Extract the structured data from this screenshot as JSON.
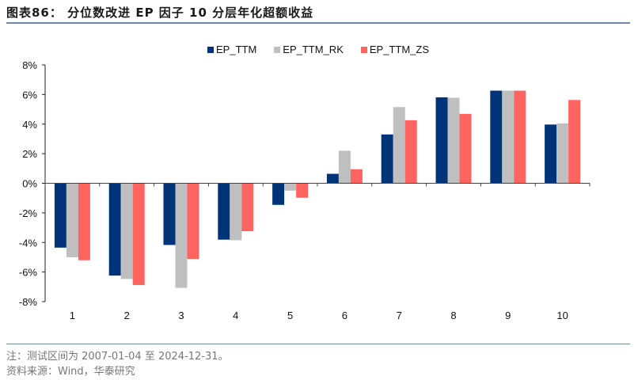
{
  "title": "图表86： 分位数改进 EP 因子 10 分层年化超额收益",
  "notes": {
    "note": "注：测试区间为 2007-01-04 至 2024-12-31。",
    "source": "资料来源：Wind，华泰研究"
  },
  "chart_data": {
    "type": "bar",
    "title": "分位数改进 EP 因子 10 分层年化超额收益",
    "xlabel": "",
    "ylabel": "",
    "categories": [
      "1",
      "2",
      "3",
      "4",
      "5",
      "6",
      "7",
      "8",
      "9",
      "10"
    ],
    "series": [
      {
        "name": "EP_TTM",
        "color": "#003478",
        "values": [
          -4.35,
          -6.24,
          -4.17,
          -3.81,
          -1.46,
          0.64,
          3.3,
          5.81,
          6.26,
          3.97
        ]
      },
      {
        "name": "EP_TTM_RK",
        "color": "#bfbfbf",
        "values": [
          -5.0,
          -6.47,
          -7.07,
          -3.85,
          -0.5,
          2.2,
          5.15,
          5.78,
          6.26,
          4.05
        ]
      },
      {
        "name": "EP_TTM_ZS",
        "color": "#ff6461",
        "values": [
          -5.2,
          -6.88,
          -5.12,
          -3.24,
          -0.98,
          0.95,
          4.26,
          4.69,
          6.26,
          5.63
        ]
      }
    ],
    "ylim": [
      -8,
      8
    ],
    "yticks": [
      8,
      6,
      4,
      2,
      0,
      -2,
      -4,
      -6,
      -8
    ],
    "ytick_format": "percent",
    "grid": false,
    "legend": "top-center"
  }
}
